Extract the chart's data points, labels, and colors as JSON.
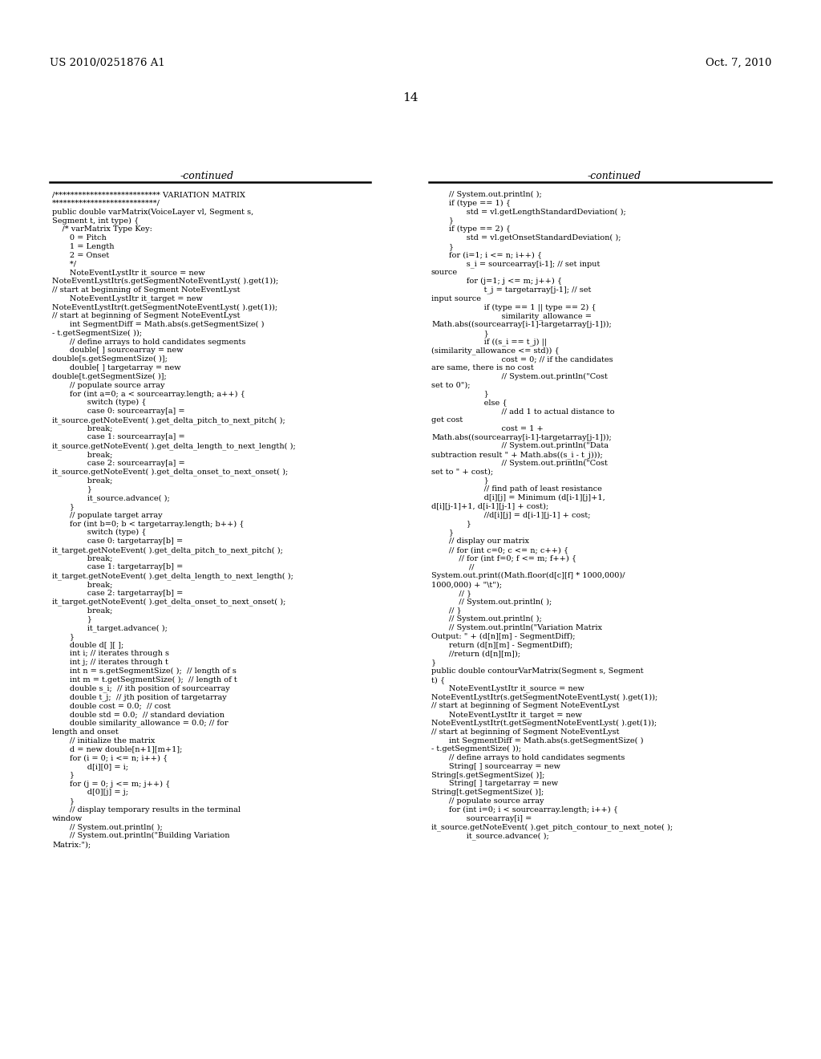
{
  "top_left": "US 2010/0251876 A1",
  "top_right": "Oct. 7, 2010",
  "page_number": "14",
  "left_header": "-continued",
  "right_header": "-continued",
  "left_code": [
    "/*************************** VARIATION MATRIX",
    "***************************/",
    "public double varMatrix(VoiceLayer vl, Segment s,",
    "Segment t, int type) {",
    "    /* varMatrix Type Key:",
    "       0 = Pitch",
    "       1 = Length",
    "       2 = Onset",
    "       */",
    "       NoteEventLystItr it_source = new",
    "NoteEventLystItr(s.getSegmentNoteEventLyst( ).get(1));",
    "// start at beginning of Segment NoteEventLyst",
    "       NoteEventLystItr it_target = new",
    "NoteEventLystItr(t.getSegmentNoteEventLyst( ).get(1));",
    "// start at beginning of Segment NoteEventLyst",
    "       int SegmentDiff = Math.abs(s.getSegmentSize( )",
    "- t.getSegmentSize( ));",
    "       // define arrays to hold candidates segments",
    "       double[ ] sourcearray = new",
    "double[s.getSegmentSize( )];",
    "       double[ ] targetarray = new",
    "double[t.getSegmentSize( )];",
    "       // populate source array",
    "       for (int a=0; a < sourcearray.length; a++) {",
    "              switch (type) {",
    "              case 0: sourcearray[a] =",
    "it_source.getNoteEvent( ).get_delta_pitch_to_next_pitch( );",
    "              break;",
    "              case 1: sourcearray[a] =",
    "it_source.getNoteEvent( ).get_delta_length_to_next_length( );",
    "              break;",
    "              case 2: sourcearray[a] =",
    "it_source.getNoteEvent( ).get_delta_onset_to_next_onset( );",
    "              break;",
    "              }",
    "              it_source.advance( );",
    "       }",
    "       // populate target array",
    "       for (int b=0; b < targetarray.length; b++) {",
    "              switch (type) {",
    "              case 0: targetarray[b] =",
    "it_target.getNoteEvent( ).get_delta_pitch_to_next_pitch( );",
    "              break;",
    "              case 1: targetarray[b] =",
    "it_target.getNoteEvent( ).get_delta_length_to_next_length( );",
    "              break;",
    "              case 2: targetarray[b] =",
    "it_target.getNoteEvent( ).get_delta_onset_to_next_onset( );",
    "              break;",
    "              }",
    "              it_target.advance( );",
    "       }",
    "       double d[ ][ ];",
    "       int i; // iterates through s",
    "       int j; // iterates through t",
    "       int n = s.getSegmentSize( );  // length of s",
    "       int m = t.getSegmentSize( );  // length of t",
    "       double s_i;  // ith position of sourcearray",
    "       double t_j;  // jth position of targetarray",
    "       double cost = 0.0;  // cost",
    "       double std = 0.0;  // standard deviation",
    "       double similarity_allowance = 0.0; // for",
    "length and onset",
    "       // initialize the matrix",
    "       d = new double[n+1][m+1];",
    "       for (i = 0; i <= n; i++) {",
    "              d[i][0] = i;",
    "       }",
    "       for (j = 0; j <= m; j++) {",
    "              d[0][j] = j;",
    "       }",
    "       // display temporary results in the terminal",
    "window",
    "       // System.out.println( );",
    "       // System.out.println(\"Building Variation",
    "Matrix:\");"
  ],
  "right_code": [
    "       // System.out.println( );",
    "       if (type == 1) {",
    "              std = vl.getLengthStandardDeviation( );",
    "       }",
    "       if (type == 2) {",
    "              std = vl.getOnsetStandardDeviation( );",
    "       }",
    "       for (i=1; i <= n; i++) {",
    "              s_i = sourcearray[i-1]; // set input",
    "source",
    "              for (j=1; j <= m; j++) {",
    "                     t_j = targetarray[j-1]; // set",
    "input source",
    "                     if (type == 1 || type == 2) {",
    "                            similarity_allowance =",
    "Math.abs((sourcearray[i-1]-targetarray[j-1]));",
    "                     }",
    "                     if ((s_i == t_j) ||",
    "(similarity_allowance <= std)) {",
    "                            cost = 0; // if the candidates",
    "are same, there is no cost",
    "                            // System.out.println(\"Cost",
    "set to 0\");",
    "                     }",
    "                     else {",
    "                            // add 1 to actual distance to",
    "get cost",
    "                            cost = 1 +",
    "Math.abs((sourcearray[i-1]-targetarray[j-1]));",
    "                            // System.out.println(\"Data",
    "subtraction result \" + Math.abs((s_i - t_j)));",
    "                            // System.out.println(\"Cost",
    "set to \" + cost);",
    "                     }",
    "                     // find path of least resistance",
    "                     d[i][j] = Minimum (d[i-1][j]+1,",
    "d[i][j-1]+1, d[i-1][j-1] + cost);",
    "                     //d[i][j] = d[i-1][j-1] + cost;",
    "              }",
    "       }",
    "       // display our matrix",
    "       // for (int c=0; c <= n; c++) {",
    "           // for (int f=0; f <= m; f++) {",
    "               //",
    "System.out.print((Math.floor(d[c][f] * 1000,000)/",
    "1000,000) + \"\\t\");",
    "           // }",
    "           // System.out.println( );",
    "       // }",
    "       // System.out.println( );",
    "       // System.out.println(\"Variation Matrix",
    "Output: \" + (d[n][m] - SegmentDiff);",
    "       return (d[n][m] - SegmentDiff);",
    "       //return (d[n][m]);",
    "}",
    "public double contourVarMatrix(Segment s, Segment",
    "t) {",
    "       NoteEventLystItr it_source = new",
    "NoteEventLystItr(s.getSegmentNoteEventLyst( ).get(1));",
    "// start at beginning of Segment NoteEventLyst",
    "       NoteEventLystItr it_target = new",
    "NoteEventLystItr(t.getSegmentNoteEventLyst( ).get(1));",
    "// start at beginning of Segment NoteEventLyst",
    "       int SegmentDiff = Math.abs(s.getSegmentSize( )",
    "- t.getSegmentSize( ));",
    "       // define arrays to hold candidates segments",
    "       String[ ] sourcearray = new",
    "String[s.getSegmentSize( )];",
    "       String[ ] targetarray = new",
    "String[t.getSegmentSize( )];",
    "       // populate source array",
    "       for (int i=0; i < sourcearray.length; i++) {",
    "              sourcearray[i] =",
    "it_source.getNoteEvent( ).get_pitch_contour_to_next_note( );",
    "              it_source.advance( );"
  ],
  "background_color": "#ffffff",
  "text_color": "#000000"
}
